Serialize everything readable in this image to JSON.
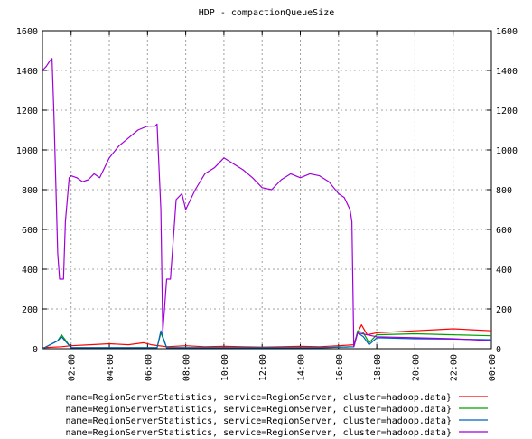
{
  "chart_data": {
    "type": "line",
    "title": "HDP - compactionQueueSize",
    "ylim": [
      0,
      1600
    ],
    "y_ticks": [
      0,
      200,
      400,
      600,
      800,
      1000,
      1200,
      1400,
      1600
    ],
    "y_tick_labels": [
      "0",
      "200",
      "400",
      "600",
      "800",
      "1000",
      "1200",
      "1400",
      "1600"
    ],
    "xlim": [
      0.5,
      24.0
    ],
    "x_ticks": [
      2,
      4,
      6,
      8,
      10,
      12,
      14,
      16,
      18,
      20,
      22,
      24
    ],
    "x_tick_labels": [
      "02:00",
      "04:00",
      "06:00",
      "08:00",
      "10:00",
      "12:00",
      "14:00",
      "16:00",
      "18:00",
      "20:00",
      "22:00",
      "00:00"
    ],
    "grid": true,
    "legend_position": "bottom",
    "series": [
      {
        "name": "name=RegionServerStatistics, service=RegionServer, cluster=hadoop.data}",
        "color": "#ff0000",
        "x": [
          0.5,
          1.5,
          2.0,
          3.0,
          4.0,
          5.0,
          5.8,
          6.2,
          7.0,
          8.0,
          9.0,
          10.0,
          11.0,
          12.0,
          13.0,
          14.0,
          15.0,
          16.0,
          16.8,
          17.0,
          17.2,
          17.5,
          18.0,
          19.0,
          20.0,
          21.0,
          22.0,
          23.0,
          24.0
        ],
        "y": [
          5,
          10,
          15,
          20,
          25,
          20,
          30,
          20,
          10,
          15,
          10,
          12,
          10,
          8,
          10,
          12,
          10,
          15,
          20,
          80,
          120,
          70,
          80,
          85,
          90,
          95,
          100,
          95,
          90
        ]
      },
      {
        "name": "name=RegionServerStatistics, service=RegionServer, cluster=hadoop.data}",
        "color": "#00a000",
        "x": [
          0.5,
          1.3,
          1.5,
          2.0,
          4.0,
          6.0,
          6.5,
          6.7,
          7.0,
          9.0,
          12.0,
          15.0,
          16.8,
          17.0,
          17.3,
          17.6,
          18.0,
          20.0,
          22.0,
          24.0
        ],
        "y": [
          0,
          40,
          70,
          5,
          5,
          5,
          5,
          80,
          5,
          5,
          5,
          5,
          10,
          90,
          80,
          30,
          70,
          75,
          70,
          65
        ]
      },
      {
        "name": "name=RegionServerStatistics, service=RegionServer, cluster=hadoop.data}",
        "color": "#0060c0",
        "x": [
          0.5,
          1.3,
          1.5,
          2.0,
          4.0,
          6.0,
          6.5,
          6.7,
          7.0,
          9.0,
          12.0,
          15.0,
          16.8,
          17.0,
          17.3,
          17.6,
          18.0,
          20.0,
          22.0,
          24.0
        ],
        "y": [
          0,
          40,
          60,
          5,
          5,
          5,
          5,
          90,
          5,
          5,
          5,
          5,
          10,
          80,
          60,
          20,
          55,
          50,
          48,
          45
        ]
      },
      {
        "name": "name=RegionServerStatistics, service=RegionServer, cluster=hadoop.data}",
        "color": "#a000d8",
        "x": [
          0.5,
          0.7,
          0.9,
          1.0,
          1.1,
          1.3,
          1.4,
          1.5,
          1.6,
          1.7,
          1.9,
          2.0,
          2.3,
          2.6,
          2.9,
          3.2,
          3.5,
          4.0,
          4.5,
          5.0,
          5.5,
          6.0,
          6.4,
          6.5,
          6.7,
          6.8,
          7.0,
          7.2,
          7.5,
          7.8,
          8.0,
          8.5,
          9.0,
          9.5,
          10.0,
          10.5,
          11.0,
          11.5,
          12.0,
          12.5,
          13.0,
          13.5,
          14.0,
          14.5,
          15.0,
          15.5,
          16.0,
          16.3,
          16.6,
          16.7,
          16.8,
          17.0,
          18.0,
          20.0,
          22.0,
          24.0
        ],
        "y": [
          1400,
          1420,
          1450,
          1460,
          1180,
          480,
          350,
          350,
          350,
          640,
          860,
          870,
          860,
          840,
          850,
          880,
          860,
          960,
          1020,
          1060,
          1100,
          1120,
          1120,
          1130,
          700,
          80,
          350,
          350,
          750,
          780,
          700,
          800,
          880,
          910,
          960,
          930,
          900,
          860,
          810,
          800,
          850,
          880,
          860,
          880,
          870,
          840,
          780,
          760,
          700,
          640,
          10,
          80,
          60,
          55,
          50,
          40
        ]
      }
    ]
  }
}
